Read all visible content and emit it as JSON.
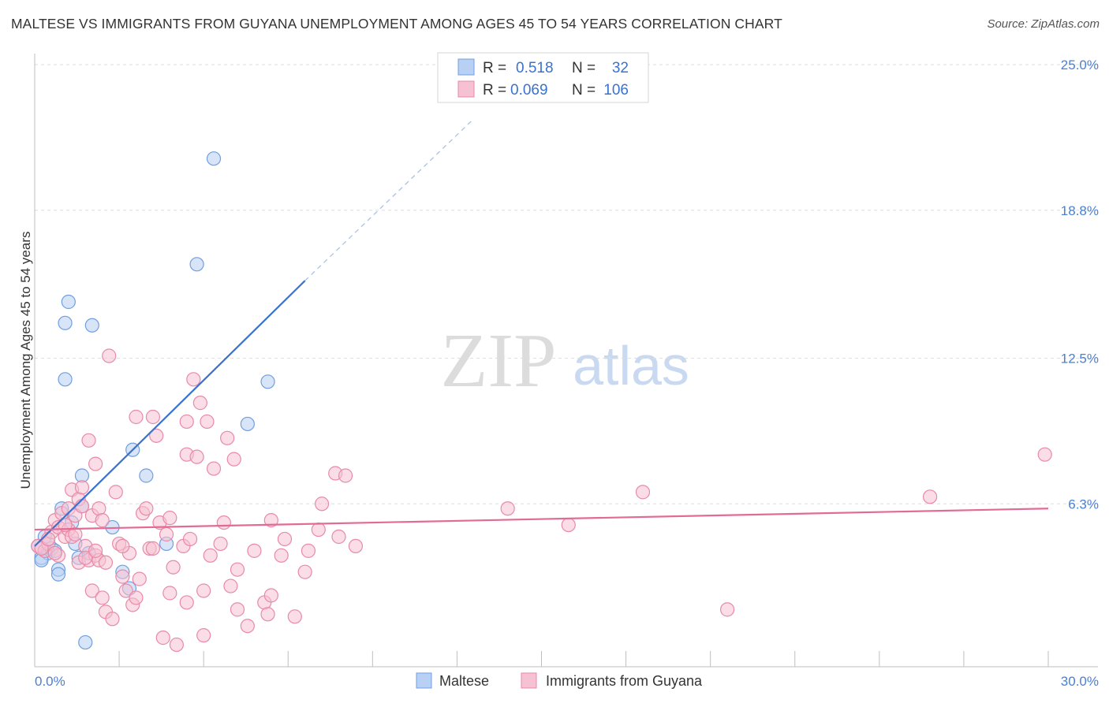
{
  "header": {
    "title": "MALTESE VS IMMIGRANTS FROM GUYANA UNEMPLOYMENT AMONG AGES 45 TO 54 YEARS CORRELATION CHART",
    "source": "Source: ZipAtlas.com"
  },
  "watermark": {
    "zip": "ZIP",
    "atlas": "atlas"
  },
  "legend": {
    "series": [
      {
        "r_label": "R =",
        "r_value": "0.518",
        "n_label": "N =",
        "n_value": "32"
      },
      {
        "r_label": "R =",
        "r_value": "0.069",
        "n_label": "N =",
        "n_value": "106"
      }
    ]
  },
  "chart_data": {
    "type": "scatter",
    "title": "MALTESE VS IMMIGRANTS FROM GUYANA UNEMPLOYMENT AMONG AGES 45 TO 54 YEARS CORRELATION CHART",
    "xlabel": "",
    "ylabel": "Unemployment Among Ages 45 to 54 years",
    "xlim": [
      0,
      30
    ],
    "ylim": [
      0,
      25
    ],
    "x_tick_labels": [
      "0.0%",
      "30.0%"
    ],
    "y_ticks": [
      6.3,
      12.5,
      18.8,
      25.0
    ],
    "y_tick_labels": [
      "6.3%",
      "12.5%",
      "18.8%",
      "25.0%"
    ],
    "grid": true,
    "series": [
      {
        "name": "Maltese",
        "color": "#6f9fe0",
        "fill": "#b8d0f3",
        "trend": {
          "x0": 0.0,
          "y0": 4.5,
          "x1": 8.0,
          "y1": 15.8,
          "dash_to_x": 13.0,
          "dash_to_y": 22.7
        },
        "points": [
          [
            0.1,
            4.5
          ],
          [
            0.2,
            4.0
          ],
          [
            0.3,
            4.3
          ],
          [
            0.3,
            4.9
          ],
          [
            0.4,
            4.2
          ],
          [
            0.5,
            4.4
          ],
          [
            0.6,
            4.3
          ],
          [
            0.7,
            3.5
          ],
          [
            0.7,
            3.3
          ],
          [
            0.8,
            6.1
          ],
          [
            0.9,
            11.6
          ],
          [
            0.9,
            14.0
          ],
          [
            1.0,
            14.9
          ],
          [
            1.1,
            5.5
          ],
          [
            1.2,
            4.6
          ],
          [
            1.3,
            4.0
          ],
          [
            1.4,
            6.2
          ],
          [
            1.4,
            7.5
          ],
          [
            1.6,
            4.2
          ],
          [
            1.7,
            13.9
          ],
          [
            2.3,
            5.3
          ],
          [
            2.6,
            3.4
          ],
          [
            2.8,
            2.7
          ],
          [
            2.9,
            8.6
          ],
          [
            3.3,
            7.5
          ],
          [
            3.9,
            4.6
          ],
          [
            4.8,
            16.5
          ],
          [
            5.3,
            21.0
          ],
          [
            6.3,
            9.7
          ],
          [
            6.9,
            11.5
          ],
          [
            1.5,
            0.4
          ],
          [
            0.2,
            3.9
          ]
        ]
      },
      {
        "name": "Immigrants from Guyana",
        "color": "#e88aa8",
        "fill": "#f6c1d2",
        "trend": {
          "x0": 0.0,
          "y0": 5.2,
          "x1": 30.0,
          "y1": 6.1
        },
        "points": [
          [
            0.1,
            4.5
          ],
          [
            0.3,
            4.3
          ],
          [
            0.4,
            4.6
          ],
          [
            0.5,
            5.1
          ],
          [
            0.6,
            5.6
          ],
          [
            0.7,
            5.3
          ],
          [
            0.7,
            4.1
          ],
          [
            0.8,
            5.9
          ],
          [
            0.9,
            4.9
          ],
          [
            1.0,
            5.2
          ],
          [
            1.0,
            6.1
          ],
          [
            1.1,
            4.9
          ],
          [
            1.1,
            6.9
          ],
          [
            1.2,
            5.8
          ],
          [
            1.3,
            3.8
          ],
          [
            1.3,
            6.5
          ],
          [
            1.4,
            6.2
          ],
          [
            1.4,
            7.0
          ],
          [
            1.5,
            4.5
          ],
          [
            1.6,
            3.9
          ],
          [
            1.6,
            9.0
          ],
          [
            1.7,
            2.6
          ],
          [
            1.7,
            5.8
          ],
          [
            1.8,
            8.0
          ],
          [
            1.8,
            4.1
          ],
          [
            1.9,
            6.1
          ],
          [
            1.9,
            3.9
          ],
          [
            2.0,
            5.6
          ],
          [
            2.0,
            2.3
          ],
          [
            2.1,
            1.7
          ],
          [
            2.2,
            12.6
          ],
          [
            2.3,
            1.4
          ],
          [
            2.4,
            6.8
          ],
          [
            2.5,
            4.6
          ],
          [
            2.6,
            3.2
          ],
          [
            2.7,
            2.6
          ],
          [
            2.8,
            4.2
          ],
          [
            2.9,
            2.0
          ],
          [
            3.0,
            10.0
          ],
          [
            3.1,
            3.1
          ],
          [
            3.2,
            5.9
          ],
          [
            3.3,
            6.1
          ],
          [
            3.4,
            4.4
          ],
          [
            3.5,
            10.0
          ],
          [
            3.6,
            9.2
          ],
          [
            3.7,
            5.5
          ],
          [
            3.8,
            0.6
          ],
          [
            3.9,
            5.0
          ],
          [
            4.0,
            5.7
          ],
          [
            4.1,
            3.6
          ],
          [
            4.2,
            0.3
          ],
          [
            4.4,
            4.5
          ],
          [
            4.5,
            8.4
          ],
          [
            4.5,
            9.8
          ],
          [
            4.6,
            4.8
          ],
          [
            4.7,
            11.6
          ],
          [
            4.8,
            8.3
          ],
          [
            4.9,
            10.6
          ],
          [
            5.0,
            0.7
          ],
          [
            5.1,
            9.8
          ],
          [
            5.2,
            4.1
          ],
          [
            5.3,
            7.8
          ],
          [
            5.5,
            4.6
          ],
          [
            5.6,
            5.5
          ],
          [
            5.7,
            9.1
          ],
          [
            5.8,
            2.8
          ],
          [
            5.9,
            8.2
          ],
          [
            6.0,
            1.8
          ],
          [
            6.3,
            1.1
          ],
          [
            6.5,
            4.3
          ],
          [
            6.8,
            2.1
          ],
          [
            6.9,
            1.6
          ],
          [
            7.0,
            5.6
          ],
          [
            7.3,
            4.1
          ],
          [
            7.4,
            4.8
          ],
          [
            7.7,
            1.5
          ],
          [
            8.0,
            3.4
          ],
          [
            8.1,
            4.3
          ],
          [
            8.4,
            5.2
          ],
          [
            8.5,
            6.3
          ],
          [
            8.9,
            7.6
          ],
          [
            9.0,
            4.9
          ],
          [
            9.2,
            7.5
          ],
          [
            9.5,
            4.5
          ],
          [
            14.0,
            6.1
          ],
          [
            15.8,
            5.4
          ],
          [
            18.0,
            6.8
          ],
          [
            20.5,
            1.8
          ],
          [
            26.5,
            6.6
          ],
          [
            29.9,
            8.4
          ],
          [
            0.2,
            4.4
          ],
          [
            0.4,
            4.8
          ],
          [
            0.6,
            4.2
          ],
          [
            0.9,
            5.4
          ],
          [
            1.2,
            5.0
          ],
          [
            1.5,
            4.0
          ],
          [
            1.8,
            4.3
          ],
          [
            2.1,
            3.8
          ],
          [
            2.6,
            4.5
          ],
          [
            3.0,
            2.3
          ],
          [
            3.5,
            4.4
          ],
          [
            4.0,
            2.5
          ],
          [
            4.5,
            2.1
          ],
          [
            5.0,
            2.6
          ],
          [
            6.0,
            3.5
          ],
          [
            7.0,
            2.4
          ]
        ]
      }
    ]
  },
  "bottom_legend": [
    {
      "label": "Maltese"
    },
    {
      "label": "Immigrants from Guyana"
    }
  ]
}
